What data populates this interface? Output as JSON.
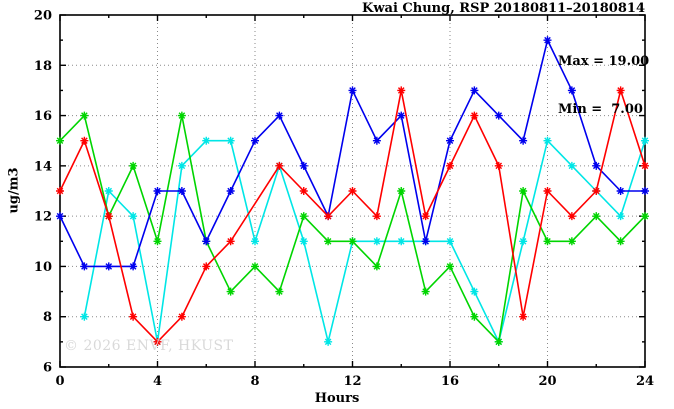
{
  "chart": {
    "title": "Kwai Chung, RSP 20180811–20180814",
    "ylabel": "ug/m3",
    "xlabel": "Hours",
    "annotation": {
      "max_label": "Max = 19.00",
      "min_label": "Min =  7.00"
    },
    "watermark": "© 2026 ENVF, HKUST"
  },
  "chart_data": {
    "type": "line",
    "title": "Kwai Chung, RSP 20180811–20180814",
    "xlabel": "Hours",
    "ylabel": "ug/m3",
    "xlim": [
      0,
      24
    ],
    "ylim": [
      6,
      20
    ],
    "x_ticks_major": [
      0,
      4,
      8,
      12,
      16,
      20,
      24
    ],
    "x_ticks_minor": [
      2,
      6,
      10,
      14,
      18,
      22
    ],
    "y_ticks_major": [
      6,
      8,
      10,
      12,
      14,
      16,
      18,
      20
    ],
    "y_ticks_minor": [
      7,
      9,
      11,
      13,
      15,
      17,
      19
    ],
    "grid": true,
    "legend": "none",
    "marker": "asterisk",
    "max": 19.0,
    "min": 7.0,
    "x": [
      0,
      1,
      2,
      3,
      4,
      5,
      6,
      7,
      8,
      9,
      10,
      11,
      12,
      13,
      14,
      15,
      16,
      17,
      18,
      19,
      20,
      21,
      22,
      23,
      24
    ],
    "series": [
      {
        "name": "series-cyan",
        "color": "#00e6e6",
        "values": [
          null,
          8,
          13,
          12,
          7,
          14,
          15,
          15,
          11,
          14,
          11,
          7,
          11,
          11,
          11,
          11,
          11,
          9,
          7,
          11,
          15,
          14,
          13,
          12,
          15
        ]
      },
      {
        "name": "series-green",
        "color": "#00d500",
        "values": [
          15,
          16,
          12,
          14,
          11,
          16,
          11,
          9,
          10,
          9,
          12,
          11,
          11,
          10,
          13,
          9,
          10,
          8,
          7,
          13,
          11,
          11,
          12,
          11,
          12
        ]
      },
      {
        "name": "series-blue",
        "color": "#0000ee",
        "values": [
          12,
          10,
          10,
          10,
          13,
          13,
          11,
          13,
          15,
          16,
          14,
          12,
          17,
          15,
          16,
          11,
          15,
          17,
          16,
          15,
          19,
          17,
          14,
          13,
          13
        ]
      },
      {
        "name": "series-red",
        "color": "#ff0000",
        "values": [
          13,
          15,
          12,
          8,
          7,
          8,
          10,
          11,
          null,
          14,
          13,
          12,
          13,
          12,
          17,
          12,
          14,
          16,
          14,
          8,
          13,
          12,
          13,
          17,
          14
        ]
      }
    ],
    "grid_color": "#8a8a8a",
    "axis_color": "#000000"
  }
}
